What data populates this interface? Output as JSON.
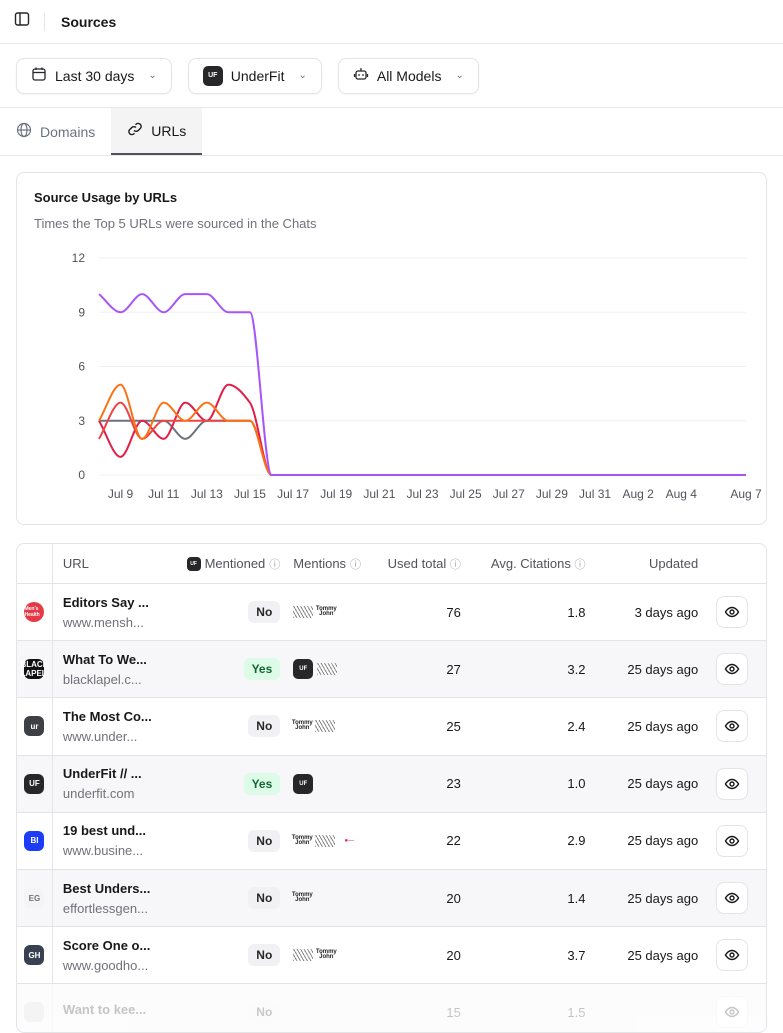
{
  "header": {
    "title": "Sources",
    "sidebar_icon": "sidebar-toggle-icon"
  },
  "filters": {
    "date": "Last 30 days",
    "brand": "UnderFit",
    "brand_logo": "UF",
    "models": "All Models"
  },
  "tabs": [
    {
      "label": "Domains",
      "icon": "globe-icon"
    },
    {
      "label": "URLs",
      "icon": "link-icon",
      "active": true
    }
  ],
  "chart": {
    "title": "Source Usage by URLs",
    "subtitle": "Times the Top 5 URLs were sourced in the Chats"
  },
  "chart_data": {
    "type": "line",
    "title": "Source Usage by URLs",
    "subtitle": "Times the Top 5 URLs were sourced in the Chats",
    "x": [
      "Jul 8",
      "Jul 9",
      "Jul 10",
      "Jul 11",
      "Jul 12",
      "Jul 13",
      "Jul 14",
      "Jul 15",
      "Jul 16",
      "Jul 17",
      "Jul 18",
      "Jul 19",
      "Jul 20",
      "Jul 21",
      "Jul 22",
      "Jul 23",
      "Jul 24",
      "Jul 25",
      "Jul 26",
      "Jul 27",
      "Jul 28",
      "Jul 29",
      "Jul 30",
      "Jul 31",
      "Aug 1",
      "Aug 2",
      "Aug 3",
      "Aug 4",
      "Aug 5",
      "Aug 6",
      "Aug 7"
    ],
    "x_tick_labels": [
      "Jul 9",
      "Jul 11",
      "Jul 13",
      "Jul 15",
      "Jul 17",
      "Jul 19",
      "Jul 21",
      "Jul 23",
      "Jul 25",
      "Jul 27",
      "Jul 29",
      "Jul 31",
      "Aug 2",
      "Aug 4",
      "Aug 7"
    ],
    "y_ticks": [
      0,
      3,
      6,
      9,
      12
    ],
    "ylim": [
      0,
      12
    ],
    "grid": true,
    "series": [
      {
        "color": "#a855f7",
        "values": [
          10,
          9,
          10,
          9,
          10,
          10,
          9,
          9,
          0,
          0,
          0,
          0,
          0,
          0,
          0,
          0,
          0,
          0,
          0,
          0,
          0,
          0,
          0,
          0,
          0,
          0,
          0,
          0,
          0,
          0,
          0
        ]
      },
      {
        "color": "#f97316",
        "values": [
          3,
          5,
          2,
          4,
          3,
          4,
          3,
          3,
          0,
          0,
          0,
          0,
          0,
          0,
          0,
          0,
          0,
          0,
          0,
          0,
          0,
          0,
          0,
          0,
          0,
          0,
          0,
          0,
          0,
          0,
          0
        ]
      },
      {
        "color": "#ef4444",
        "values": [
          2,
          4,
          2,
          3,
          3,
          3,
          3,
          3,
          0,
          0,
          0,
          0,
          0,
          0,
          0,
          0,
          0,
          0,
          0,
          0,
          0,
          0,
          0,
          0,
          0,
          0,
          0,
          0,
          0,
          0,
          0
        ]
      },
      {
        "color": "#e11d48",
        "values": [
          3,
          1,
          3,
          2,
          4,
          3,
          5,
          4,
          0,
          0,
          0,
          0,
          0,
          0,
          0,
          0,
          0,
          0,
          0,
          0,
          0,
          0,
          0,
          0,
          0,
          0,
          0,
          0,
          0,
          0,
          0
        ]
      },
      {
        "color": "#6b7280",
        "values": [
          3,
          3,
          3,
          3,
          2,
          3,
          3,
          3,
          0,
          0,
          0,
          0,
          0,
          0,
          0,
          0,
          0,
          0,
          0,
          0,
          0,
          0,
          0,
          0,
          0,
          0,
          0,
          0,
          0,
          0,
          0
        ]
      }
    ]
  },
  "table": {
    "headers": {
      "url": "URL",
      "mentioned": "Mentioned",
      "mentions": "Mentions",
      "used_total": "Used total",
      "avg_citations": "Avg. Citations",
      "updated": "Updated"
    },
    "rows": [
      {
        "title": "Editors Say ...",
        "domain": "www.mensh...",
        "logo": "Men's Health",
        "logo_bg": "#e63946",
        "mentioned": "No",
        "mentions": [
          "w",
          "tj"
        ],
        "used": "76",
        "avg": "1.8",
        "updated": "3 days ago"
      },
      {
        "title": "What To We...",
        "domain": "blacklapel.c...",
        "logo": "BLACK LAPEL",
        "logo_bg": "#111111",
        "mentioned": "Yes",
        "mentions": [
          "uf",
          "w"
        ],
        "used": "27",
        "avg": "3.2",
        "updated": "25 days ago"
      },
      {
        "title": "The Most Co...",
        "domain": "www.under...",
        "logo": "ur",
        "logo_bg": "#3f3f46",
        "mentioned": "No",
        "mentions": [
          "tj",
          "w"
        ],
        "used": "25",
        "avg": "2.4",
        "updated": "25 days ago"
      },
      {
        "title": "UnderFit // ...",
        "domain": "underfit.com",
        "logo": "UF",
        "logo_bg": "#27272a",
        "mentioned": "Yes",
        "mentions": [
          "uf"
        ],
        "used": "23",
        "avg": "1.0",
        "updated": "25 days ago"
      },
      {
        "title": "19 best und...",
        "domain": "www.busine...",
        "logo": "BI",
        "logo_bg": "#1d3cf5",
        "mentioned": "No",
        "mentions": [
          "tj",
          "w",
          "red"
        ],
        "used": "22",
        "avg": "2.9",
        "updated": "25 days ago"
      },
      {
        "title": "Best Unders...",
        "domain": "effortlessgen...",
        "logo": "EG",
        "logo_bg": "#f4f4f5",
        "mentioned": "No",
        "mentions": [
          "tj"
        ],
        "used": "20",
        "avg": "1.4",
        "updated": "25 days ago"
      },
      {
        "title": "Score One o...",
        "domain": "www.goodho...",
        "logo": "GH",
        "logo_bg": "#374151",
        "mentioned": "No",
        "mentions": [
          "w",
          "tj"
        ],
        "used": "20",
        "avg": "3.7",
        "updated": "25 days ago"
      },
      {
        "title": "Want to kee...",
        "domain": "",
        "logo": "",
        "logo_bg": "#d4d4d8",
        "mentioned": "No",
        "mentions": [],
        "used": "15",
        "avg": "1.5",
        "updated": ""
      }
    ]
  }
}
